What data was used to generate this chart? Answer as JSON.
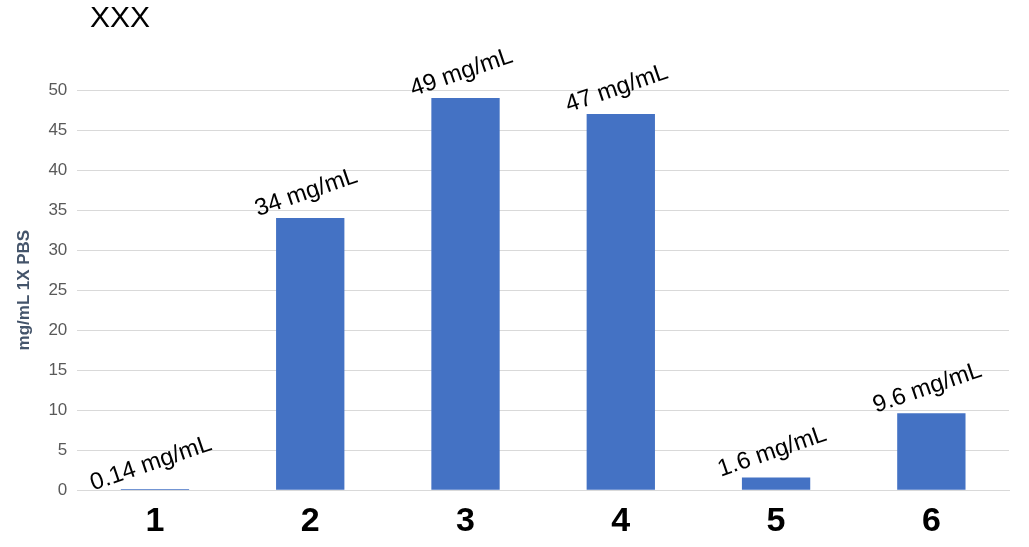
{
  "chart_data": {
    "type": "bar",
    "title": "XXX",
    "ylabel": "mg/mL 1X PBS",
    "categories": [
      "1",
      "2",
      "3",
      "4",
      "5",
      "6"
    ],
    "values": [
      0.14,
      34,
      49,
      47,
      1.6,
      9.6
    ],
    "color": "#4472c4",
    "value_labels": [
      "0.14 mg/mL",
      "34 mg/mL",
      "49 mg/mL",
      "47 mg/mL",
      "1.6 mg/mL",
      "9.6 mg/mL"
    ],
    "ylim": [
      0,
      50
    ],
    "yticks": [
      0,
      5,
      10,
      15,
      20,
      25,
      30,
      35,
      40,
      45,
      50
    ],
    "grid": "y",
    "legend": false
  }
}
